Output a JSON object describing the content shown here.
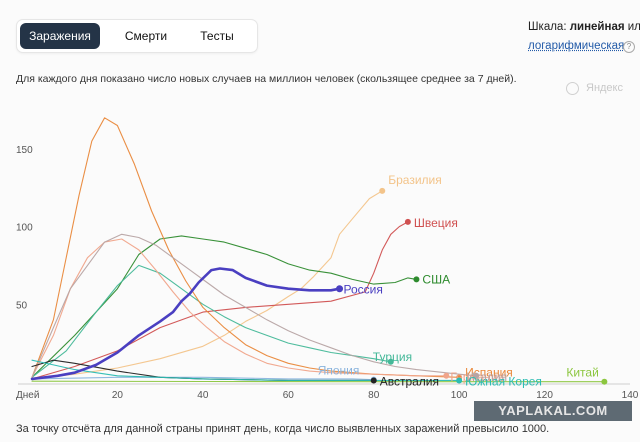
{
  "tabs": [
    {
      "label": "Заражения",
      "active": true
    },
    {
      "label": "Смерти",
      "active": false
    },
    {
      "label": "Тесты",
      "active": false
    }
  ],
  "scale": {
    "prefix": "Шкала: ",
    "active_label": "линейная",
    "suffix": " или",
    "link_label": "логарифмическая",
    "help_icon": "question-icon"
  },
  "subtitle": "Для каждого дня показано число новых случаев на миллион человек (скользящее среднее за 7 дней).",
  "branding": {
    "label": "Яндекс",
    "icon": "yandex-circle-icon"
  },
  "watermark": "YAPLAKAL.COM",
  "footnote": "За точку отсчёта для данной страны принят день, когда число выявленных заражений превысило 1000.",
  "chart_data": {
    "type": "line",
    "xlabel": "Дней",
    "ylabel": "",
    "xlim": [
      0,
      140
    ],
    "ylim": [
      0,
      175
    ],
    "xticks": [
      20,
      40,
      60,
      80,
      100,
      120,
      140
    ],
    "yticks": [
      50,
      100,
      150
    ],
    "grid": false,
    "series": [
      {
        "name": "Россия",
        "color": "#4a3fc1",
        "width": 2.6,
        "emphasis": true,
        "points": [
          [
            0,
            2
          ],
          [
            6,
            4
          ],
          [
            10,
            6
          ],
          [
            15,
            11
          ],
          [
            20,
            19
          ],
          [
            25,
            30
          ],
          [
            30,
            39
          ],
          [
            33,
            45
          ],
          [
            35,
            52
          ],
          [
            37,
            57
          ],
          [
            39,
            64
          ],
          [
            42,
            72
          ],
          [
            44,
            73
          ],
          [
            47,
            72
          ],
          [
            50,
            67
          ],
          [
            55,
            62
          ],
          [
            60,
            60
          ],
          [
            65,
            59
          ],
          [
            70,
            59
          ],
          [
            72,
            60
          ]
        ]
      },
      {
        "name": "Бразилия",
        "color": "#f3c48a",
        "points": [
          [
            0,
            2
          ],
          [
            10,
            5
          ],
          [
            20,
            9
          ],
          [
            30,
            15
          ],
          [
            40,
            23
          ],
          [
            45,
            30
          ],
          [
            50,
            39
          ],
          [
            55,
            46
          ],
          [
            60,
            55
          ],
          [
            63,
            60
          ],
          [
            66,
            68
          ],
          [
            70,
            80
          ],
          [
            72,
            95
          ],
          [
            75,
            105
          ],
          [
            79,
            118
          ],
          [
            82,
            123
          ]
        ]
      },
      {
        "name": "Швеция",
        "color": "#d05050",
        "points": [
          [
            0,
            2
          ],
          [
            10,
            10
          ],
          [
            20,
            20
          ],
          [
            30,
            35
          ],
          [
            40,
            45
          ],
          [
            50,
            48
          ],
          [
            60,
            50
          ],
          [
            70,
            52
          ],
          [
            78,
            58
          ],
          [
            80,
            70
          ],
          [
            82,
            85
          ],
          [
            84,
            95
          ],
          [
            86,
            100
          ],
          [
            88,
            103
          ]
        ]
      },
      {
        "name": "США",
        "color": "#2e8b2e",
        "points": [
          [
            0,
            3
          ],
          [
            10,
            30
          ],
          [
            20,
            60
          ],
          [
            25,
            82
          ],
          [
            30,
            92
          ],
          [
            35,
            94
          ],
          [
            40,
            92
          ],
          [
            45,
            90
          ],
          [
            50,
            86
          ],
          [
            55,
            82
          ],
          [
            60,
            76
          ],
          [
            65,
            72
          ],
          [
            70,
            70
          ],
          [
            75,
            66
          ],
          [
            80,
            63
          ],
          [
            85,
            64
          ],
          [
            88,
            67
          ],
          [
            90,
            66
          ]
        ]
      },
      {
        "name": "Турция",
        "color": "#44b898",
        "points": [
          [
            0,
            3
          ],
          [
            8,
            20
          ],
          [
            15,
            45
          ],
          [
            20,
            62
          ],
          [
            25,
            75
          ],
          [
            30,
            70
          ],
          [
            35,
            60
          ],
          [
            40,
            50
          ],
          [
            45,
            42
          ],
          [
            50,
            35
          ],
          [
            55,
            30
          ],
          [
            60,
            25
          ],
          [
            65,
            22
          ],
          [
            70,
            19
          ],
          [
            75,
            17
          ],
          [
            80,
            15
          ],
          [
            84,
            13
          ]
        ]
      },
      {
        "name": "Испания",
        "color": "#e9883a",
        "points": [
          [
            0,
            3
          ],
          [
            5,
            40
          ],
          [
            8,
            80
          ],
          [
            11,
            120
          ],
          [
            14,
            155
          ],
          [
            17,
            170
          ],
          [
            20,
            165
          ],
          [
            24,
            140
          ],
          [
            28,
            110
          ],
          [
            32,
            85
          ],
          [
            36,
            65
          ],
          [
            40,
            48
          ],
          [
            45,
            35
          ],
          [
            50,
            24
          ],
          [
            55,
            17
          ],
          [
            60,
            12
          ],
          [
            65,
            9
          ],
          [
            70,
            7
          ],
          [
            80,
            5
          ],
          [
            90,
            4
          ],
          [
            100,
            3
          ]
        ]
      },
      {
        "name": "Германия",
        "color": "#f0a48a",
        "points": [
          [
            0,
            3
          ],
          [
            5,
            30
          ],
          [
            9,
            60
          ],
          [
            13,
            80
          ],
          [
            17,
            90
          ],
          [
            21,
            92
          ],
          [
            25,
            85
          ],
          [
            29,
            72
          ],
          [
            33,
            58
          ],
          [
            37,
            45
          ],
          [
            41,
            35
          ],
          [
            45,
            26
          ],
          [
            50,
            18
          ],
          [
            55,
            12
          ],
          [
            60,
            9
          ],
          [
            65,
            7
          ],
          [
            70,
            6
          ],
          [
            80,
            5
          ],
          [
            90,
            4
          ],
          [
            97,
            4
          ]
        ]
      },
      {
        "name": "Италия",
        "color": "#b7a4a4",
        "points": [
          [
            0,
            3
          ],
          [
            5,
            35
          ],
          [
            9,
            60
          ],
          [
            13,
            75
          ],
          [
            17,
            90
          ],
          [
            21,
            95
          ],
          [
            25,
            93
          ],
          [
            29,
            88
          ],
          [
            33,
            80
          ],
          [
            37,
            72
          ],
          [
            41,
            64
          ],
          [
            45,
            56
          ],
          [
            50,
            48
          ],
          [
            55,
            40
          ],
          [
            60,
            33
          ],
          [
            65,
            27
          ],
          [
            70,
            22
          ],
          [
            75,
            17
          ],
          [
            80,
            13
          ],
          [
            85,
            10
          ],
          [
            90,
            8
          ],
          [
            100,
            5
          ],
          [
            104,
            4
          ]
        ]
      },
      {
        "name": "Япония",
        "color": "#8ab4dd",
        "points": [
          [
            0,
            2
          ],
          [
            20,
            3
          ],
          [
            40,
            3
          ],
          [
            60,
            2
          ],
          [
            75,
            2
          ],
          [
            80,
            1.5
          ]
        ]
      },
      {
        "name": "Австралия",
        "color": "#222222",
        "points": [
          [
            0,
            10
          ],
          [
            5,
            14
          ],
          [
            10,
            12
          ],
          [
            20,
            7
          ],
          [
            30,
            3
          ],
          [
            40,
            2
          ],
          [
            60,
            1
          ],
          [
            80,
            1
          ]
        ]
      },
      {
        "name": "Южная Корея",
        "color": "#2bbcb2",
        "points": [
          [
            0,
            14
          ],
          [
            5,
            11
          ],
          [
            10,
            8
          ],
          [
            20,
            4
          ],
          [
            30,
            3
          ],
          [
            40,
            2
          ],
          [
            60,
            1
          ],
          [
            80,
            1
          ],
          [
            100,
            1
          ]
        ]
      },
      {
        "name": "Китай",
        "color": "#8cc63f",
        "points": [
          [
            0,
            0.5
          ],
          [
            40,
            0.3
          ],
          [
            80,
            0.2
          ],
          [
            120,
            0.2
          ],
          [
            134,
            0.2
          ]
        ]
      }
    ]
  }
}
